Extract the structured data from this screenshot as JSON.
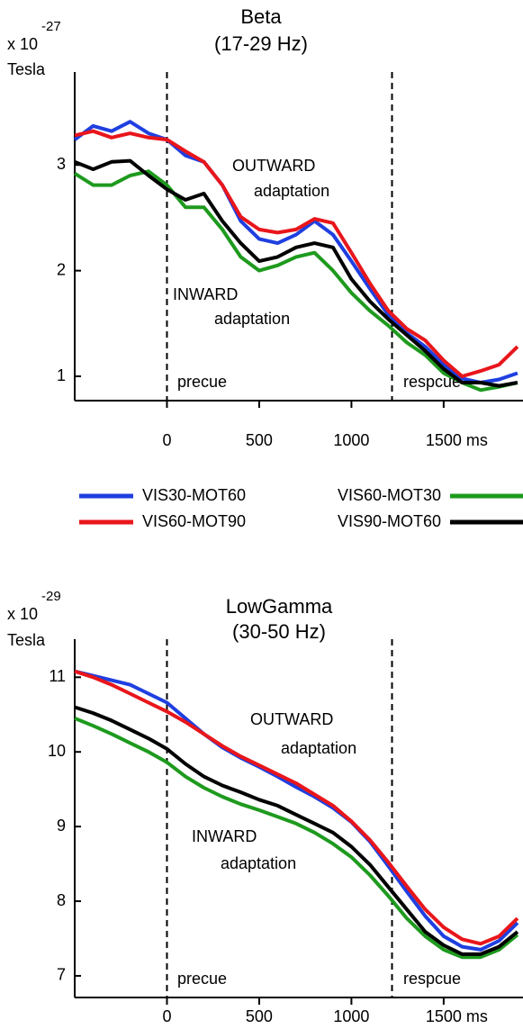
{
  "chart_data": [
    {
      "type": "line",
      "title": "Beta",
      "subtitle": "(17-29 Hz)",
      "y_unit_base": "x 10",
      "y_unit_exp": "-27",
      "ylabel": "Tesla",
      "x": [
        -500,
        -400,
        -300,
        -200,
        -100,
        0,
        100,
        200,
        300,
        400,
        500,
        600,
        700,
        800,
        900,
        1000,
        1100,
        1200,
        1300,
        1400,
        1500,
        1600,
        1700,
        1800,
        1900
      ],
      "series": [
        {
          "color": "#1f3fe0",
          "values": [
            3.24,
            3.37,
            3.32,
            3.41,
            3.3,
            3.24,
            3.09,
            3.03,
            2.81,
            2.47,
            2.3,
            2.26,
            2.34,
            2.47,
            2.34,
            2.09,
            1.83,
            1.58,
            1.41,
            1.28,
            1.11,
            0.98,
            0.94,
            0.97,
            1.03
          ]
        },
        {
          "color": "#e8161b",
          "values": [
            3.28,
            3.32,
            3.26,
            3.3,
            3.26,
            3.24,
            3.13,
            3.03,
            2.81,
            2.51,
            2.39,
            2.36,
            2.39,
            2.49,
            2.45,
            2.17,
            1.88,
            1.62,
            1.45,
            1.34,
            1.15,
            1.0,
            1.05,
            1.11,
            1.28
          ]
        },
        {
          "color": "#1e9a1e",
          "values": [
            2.92,
            2.81,
            2.81,
            2.9,
            2.94,
            2.81,
            2.6,
            2.6,
            2.39,
            2.13,
            2.0,
            2.05,
            2.13,
            2.17,
            2.0,
            1.79,
            1.62,
            1.48,
            1.32,
            1.2,
            1.03,
            0.94,
            0.87,
            0.9,
            0.94
          ]
        },
        {
          "color": "#000000",
          "values": [
            3.03,
            2.96,
            3.03,
            3.04,
            2.9,
            2.77,
            2.67,
            2.73,
            2.47,
            2.26,
            2.09,
            2.13,
            2.22,
            2.26,
            2.22,
            1.92,
            1.71,
            1.54,
            1.39,
            1.24,
            1.07,
            0.94,
            0.94,
            0.91,
            0.94
          ]
        }
      ],
      "xlim": [
        -500,
        1930
      ],
      "xticks": [
        0,
        500,
        1000,
        {
          "value": 1500,
          "label": "1500 ms"
        }
      ],
      "ylim": [
        0.77,
        3.88
      ],
      "yticks": [
        1,
        2,
        3
      ],
      "vlines": [
        0,
        1220
      ],
      "annotations": [
        "OUTWARD",
        "adaptation",
        "INWARD",
        "adaptation",
        "precue",
        "respcue"
      ]
    },
    {
      "type": "line",
      "title": "LowGamma",
      "subtitle": "(30-50 Hz)",
      "y_unit_base": "x 10",
      "y_unit_exp": "-29",
      "ylabel": "Tesla",
      "x": [
        -500,
        -400,
        -300,
        -200,
        -100,
        0,
        100,
        200,
        300,
        400,
        500,
        600,
        700,
        800,
        900,
        1000,
        1100,
        1200,
        1300,
        1400,
        1500,
        1600,
        1700,
        1800,
        1900
      ],
      "series": [
        {
          "color": "#1f3fe0",
          "values": [
            11.08,
            11.02,
            10.96,
            10.9,
            10.78,
            10.66,
            10.45,
            10.24,
            10.06,
            9.92,
            9.8,
            9.67,
            9.53,
            9.4,
            9.25,
            9.06,
            8.8,
            8.47,
            8.13,
            7.8,
            7.53,
            7.39,
            7.35,
            7.47,
            7.71
          ]
        },
        {
          "color": "#e8161b",
          "values": [
            11.08,
            11.0,
            10.9,
            10.78,
            10.66,
            10.54,
            10.4,
            10.24,
            10.08,
            9.94,
            9.82,
            9.7,
            9.58,
            9.43,
            9.28,
            9.07,
            8.82,
            8.52,
            8.2,
            7.89,
            7.65,
            7.49,
            7.43,
            7.53,
            7.77
          ]
        },
        {
          "color": "#1e9a1e",
          "values": [
            10.45,
            10.35,
            10.24,
            10.12,
            10.0,
            9.86,
            9.67,
            9.52,
            9.4,
            9.3,
            9.22,
            9.13,
            9.04,
            8.92,
            8.77,
            8.59,
            8.35,
            8.07,
            7.77,
            7.53,
            7.35,
            7.25,
            7.25,
            7.35,
            7.55
          ]
        },
        {
          "color": "#000000",
          "values": [
            10.6,
            10.52,
            10.42,
            10.3,
            10.18,
            10.04,
            9.84,
            9.67,
            9.55,
            9.46,
            9.36,
            9.28,
            9.16,
            9.04,
            8.92,
            8.73,
            8.49,
            8.19,
            7.89,
            7.59,
            7.41,
            7.29,
            7.29,
            7.39,
            7.59
          ]
        }
      ],
      "xlim": [
        -500,
        1930
      ],
      "xticks": [
        0,
        500,
        1000,
        {
          "value": 1500,
          "label": "1500 ms"
        }
      ],
      "ylim": [
        6.71,
        11.51
      ],
      "yticks": [
        7,
        8,
        9,
        10,
        11
      ],
      "vlines": [
        0,
        1220
      ],
      "annotations": [
        "OUTWARD",
        "adaptation",
        "INWARD",
        "adaptation",
        "precue",
        "respcue"
      ]
    }
  ],
  "legend": [
    {
      "name": "VIS30-MOT60",
      "color": "#1f3fe0"
    },
    {
      "name": "VIS60-MOT90",
      "color": "#e8161b"
    },
    {
      "name": "VIS60-MOT30",
      "color": "#1e9a1e"
    },
    {
      "name": "VIS90-MOT60",
      "color": "#000000"
    }
  ]
}
